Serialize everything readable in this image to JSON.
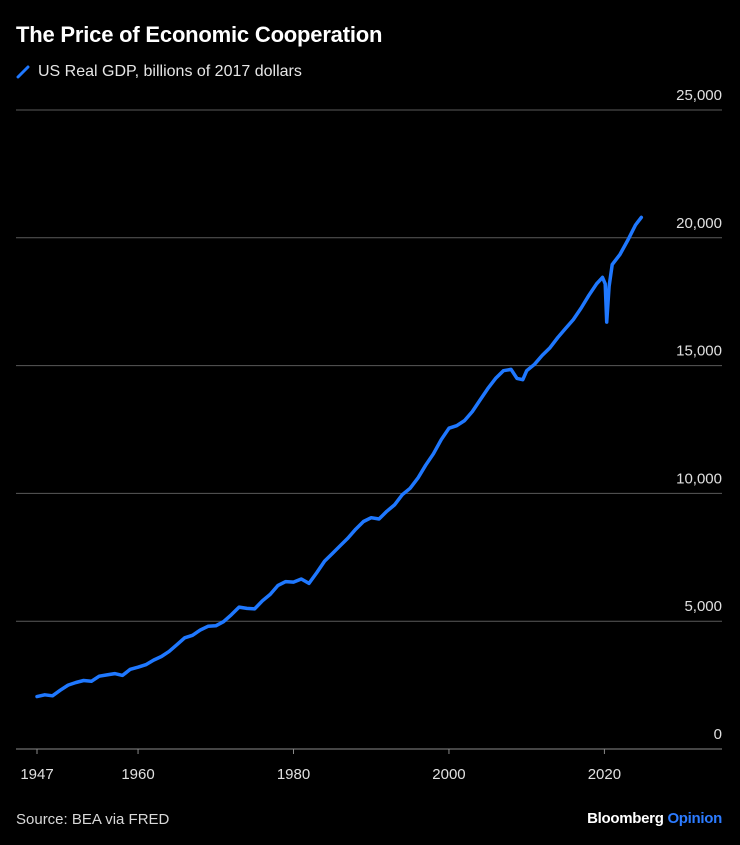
{
  "title": "The Price of Economic Cooperation",
  "source": "Source: BEA via FRED",
  "brand": {
    "name": "Bloomberg",
    "suffix": "Opinion"
  },
  "colors": {
    "line": "#1f78ff",
    "grid": "#5a5a5a",
    "background": "#000000",
    "brand_accent": "#2c7bff"
  },
  "chart_data": {
    "type": "line",
    "series": [
      {
        "name": "US Real GDP, billions of 2017 dollars",
        "points": [
          [
            1947,
            2050
          ],
          [
            1948,
            2120
          ],
          [
            1949,
            2080
          ],
          [
            1950,
            2300
          ],
          [
            1951,
            2500
          ],
          [
            1952,
            2600
          ],
          [
            1953,
            2680
          ],
          [
            1954,
            2650
          ],
          [
            1955,
            2850
          ],
          [
            1956,
            2900
          ],
          [
            1957,
            2950
          ],
          [
            1958,
            2880
          ],
          [
            1959,
            3120
          ],
          [
            1960,
            3200
          ],
          [
            1961,
            3300
          ],
          [
            1962,
            3480
          ],
          [
            1963,
            3620
          ],
          [
            1964,
            3820
          ],
          [
            1965,
            4080
          ],
          [
            1966,
            4350
          ],
          [
            1967,
            4450
          ],
          [
            1968,
            4650
          ],
          [
            1969,
            4800
          ],
          [
            1970,
            4820
          ],
          [
            1971,
            4980
          ],
          [
            1972,
            5250
          ],
          [
            1973,
            5550
          ],
          [
            1974,
            5500
          ],
          [
            1975,
            5480
          ],
          [
            1976,
            5800
          ],
          [
            1977,
            6050
          ],
          [
            1978,
            6400
          ],
          [
            1979,
            6550
          ],
          [
            1980,
            6530
          ],
          [
            1981,
            6650
          ],
          [
            1982,
            6480
          ],
          [
            1983,
            6900
          ],
          [
            1984,
            7350
          ],
          [
            1985,
            7650
          ],
          [
            1986,
            7950
          ],
          [
            1987,
            8250
          ],
          [
            1988,
            8600
          ],
          [
            1989,
            8900
          ],
          [
            1990,
            9050
          ],
          [
            1991,
            9000
          ],
          [
            1992,
            9300
          ],
          [
            1993,
            9550
          ],
          [
            1994,
            9950
          ],
          [
            1995,
            10200
          ],
          [
            1996,
            10600
          ],
          [
            1997,
            11100
          ],
          [
            1998,
            11550
          ],
          [
            1999,
            12100
          ],
          [
            2000,
            12550
          ],
          [
            2001,
            12650
          ],
          [
            2002,
            12850
          ],
          [
            2003,
            13200
          ],
          [
            2004,
            13650
          ],
          [
            2005,
            14100
          ],
          [
            2006,
            14500
          ],
          [
            2007,
            14800
          ],
          [
            2008,
            14850
          ],
          [
            2008.75,
            14500
          ],
          [
            2009.5,
            14450
          ],
          [
            2010,
            14800
          ],
          [
            2011,
            15050
          ],
          [
            2012,
            15400
          ],
          [
            2013,
            15700
          ],
          [
            2014,
            16100
          ],
          [
            2015,
            16450
          ],
          [
            2016,
            16800
          ],
          [
            2017,
            17250
          ],
          [
            2018,
            17750
          ],
          [
            2019,
            18200
          ],
          [
            2019.75,
            18450
          ],
          [
            2020.1,
            18200
          ],
          [
            2020.3,
            16700
          ],
          [
            2020.6,
            18100
          ],
          [
            2021,
            18950
          ],
          [
            2022,
            19350
          ],
          [
            2023,
            19900
          ],
          [
            2024,
            20500
          ],
          [
            2024.75,
            20800
          ]
        ]
      }
    ],
    "x_ticks": [
      "1947",
      "1960",
      "1980",
      "2000",
      "2020"
    ],
    "x_tick_values": [
      1947,
      1960,
      1980,
      2000,
      2020
    ],
    "y_ticks": [
      "0",
      "5,000",
      "10,000",
      "15,000",
      "20,000",
      "25,000"
    ],
    "y_tick_values": [
      0,
      5000,
      10000,
      15000,
      20000,
      25000
    ],
    "xlim": [
      1947,
      2035
    ],
    "ylim": [
      0,
      25000
    ],
    "grid": "horizontal",
    "legend_position": "top-left"
  }
}
